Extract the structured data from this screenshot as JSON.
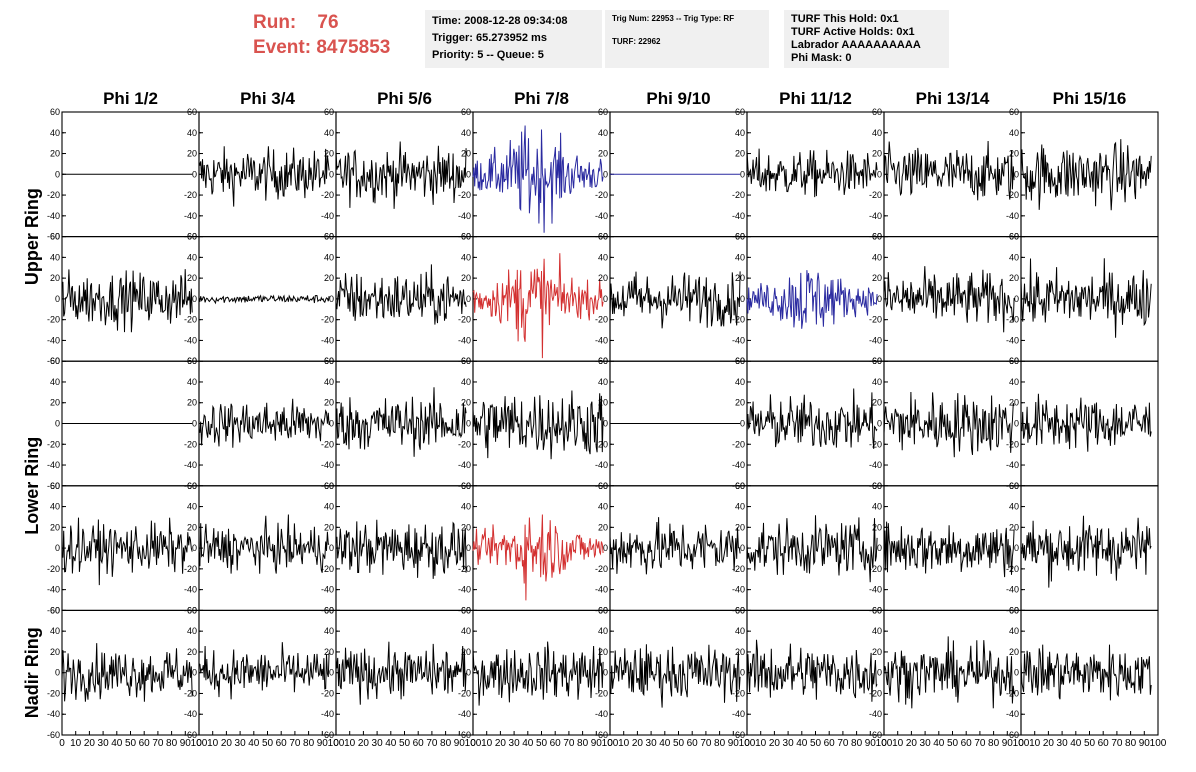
{
  "header": {
    "run_label": "Run:",
    "run_value": "76",
    "event_label": "Event:",
    "event_value": "8475853",
    "box1": [
      "Time: 2008-12-28 09:34:08",
      "Trigger: 65.273952 ms",
      "Priority: 5 -- Queue: 5"
    ],
    "box2": [
      "Trig Num: 22953 -- Trig Type: RF",
      "TURF: 22962"
    ],
    "box3": [
      "TURF This Hold: 0x1",
      "TURF Active Holds: 0x1",
      "Labrador AAAAAAAAAA",
      "Phi Mask: 0"
    ]
  },
  "chart_data": {
    "type": "line",
    "columns": [
      "Phi 1/2",
      "Phi 3/4",
      "Phi 5/6",
      "Phi 7/8",
      "Phi 9/10",
      "Phi 11/12",
      "Phi 13/14",
      "Phi 15/16"
    ],
    "row_groups": [
      "Upper Ring",
      "Lower Ring",
      "Nadir Ring"
    ],
    "ylim": [
      -60,
      60
    ],
    "xlim": [
      0,
      100
    ],
    "yticks": [
      -60,
      -40,
      -20,
      0,
      20,
      40,
      60
    ],
    "xticks": [
      0,
      10,
      20,
      30,
      40,
      50,
      60,
      70,
      80,
      90,
      100
    ],
    "trace_x_range": [
      0,
      95
    ],
    "colors": {
      "default": "#000000",
      "highlight_red": "#d33030",
      "highlight_blue": "#2a2aa0"
    },
    "panels": [
      {
        "row": 0,
        "col": 0,
        "amplitude": 0,
        "color": "default"
      },
      {
        "row": 0,
        "col": 1,
        "amplitude": 12,
        "color": "default"
      },
      {
        "row": 0,
        "col": 2,
        "amplitude": 13,
        "color": "default"
      },
      {
        "row": 0,
        "col": 3,
        "amplitude": 18,
        "color": "highlight_blue"
      },
      {
        "row": 0,
        "col": 4,
        "amplitude": 0,
        "color": "highlight_blue"
      },
      {
        "row": 0,
        "col": 5,
        "amplitude": 11,
        "color": "default"
      },
      {
        "row": 0,
        "col": 6,
        "amplitude": 13,
        "color": "default"
      },
      {
        "row": 0,
        "col": 7,
        "amplitude": 15,
        "color": "default"
      },
      {
        "row": 1,
        "col": 0,
        "amplitude": 13,
        "color": "default"
      },
      {
        "row": 1,
        "col": 1,
        "amplitude": 2,
        "color": "default"
      },
      {
        "row": 1,
        "col": 2,
        "amplitude": 13,
        "color": "default"
      },
      {
        "row": 1,
        "col": 3,
        "amplitude": 17,
        "color": "highlight_red"
      },
      {
        "row": 1,
        "col": 4,
        "amplitude": 13,
        "color": "default"
      },
      {
        "row": 1,
        "col": 5,
        "amplitude": 14,
        "color": "highlight_blue"
      },
      {
        "row": 1,
        "col": 6,
        "amplitude": 13,
        "color": "default"
      },
      {
        "row": 1,
        "col": 7,
        "amplitude": 14,
        "color": "default"
      },
      {
        "row": 2,
        "col": 0,
        "amplitude": 0,
        "color": "default"
      },
      {
        "row": 2,
        "col": 1,
        "amplitude": 11,
        "color": "default"
      },
      {
        "row": 2,
        "col": 2,
        "amplitude": 13,
        "color": "default"
      },
      {
        "row": 2,
        "col": 3,
        "amplitude": 16,
        "color": "default"
      },
      {
        "row": 2,
        "col": 4,
        "amplitude": 0,
        "color": "default"
      },
      {
        "row": 2,
        "col": 5,
        "amplitude": 13,
        "color": "default"
      },
      {
        "row": 2,
        "col": 6,
        "amplitude": 15,
        "color": "default"
      },
      {
        "row": 2,
        "col": 7,
        "amplitude": 13,
        "color": "default"
      },
      {
        "row": 3,
        "col": 0,
        "amplitude": 12,
        "color": "default"
      },
      {
        "row": 3,
        "col": 1,
        "amplitude": 11,
        "color": "default"
      },
      {
        "row": 3,
        "col": 2,
        "amplitude": 13,
        "color": "default"
      },
      {
        "row": 3,
        "col": 3,
        "amplitude": 15,
        "color": "highlight_red"
      },
      {
        "row": 3,
        "col": 4,
        "amplitude": 13,
        "color": "default"
      },
      {
        "row": 3,
        "col": 5,
        "amplitude": 13,
        "color": "default"
      },
      {
        "row": 3,
        "col": 6,
        "amplitude": 13,
        "color": "default"
      },
      {
        "row": 3,
        "col": 7,
        "amplitude": 14,
        "color": "default"
      },
      {
        "row": 4,
        "col": 0,
        "amplitude": 12,
        "color": "default"
      },
      {
        "row": 4,
        "col": 1,
        "amplitude": 11,
        "color": "default"
      },
      {
        "row": 4,
        "col": 2,
        "amplitude": 12,
        "color": "default"
      },
      {
        "row": 4,
        "col": 3,
        "amplitude": 13,
        "color": "default"
      },
      {
        "row": 4,
        "col": 4,
        "amplitude": 13,
        "color": "default"
      },
      {
        "row": 4,
        "col": 5,
        "amplitude": 14,
        "color": "default"
      },
      {
        "row": 4,
        "col": 6,
        "amplitude": 13,
        "color": "default"
      },
      {
        "row": 4,
        "col": 7,
        "amplitude": 13,
        "color": "default"
      }
    ]
  }
}
